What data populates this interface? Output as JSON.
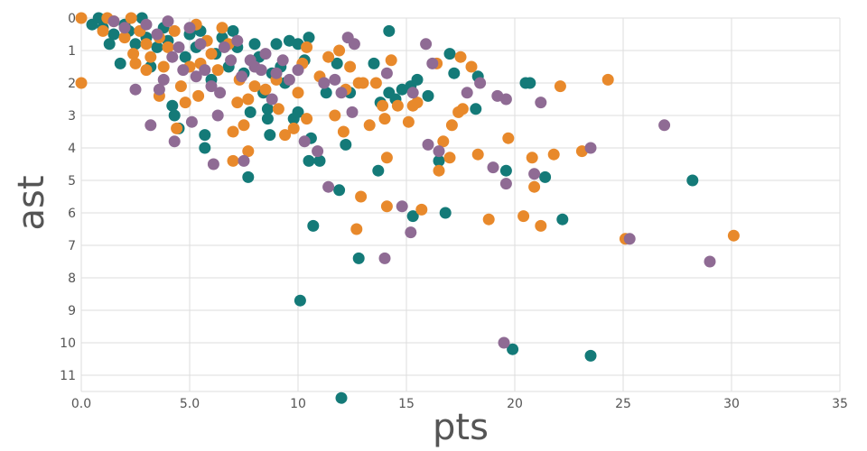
{
  "chart_data": {
    "type": "scatter",
    "title": "",
    "xlabel": "pts",
    "ylabel": "ast",
    "xlim": [
      0,
      35
    ],
    "ylim": [
      0,
      11.5
    ],
    "y_inverted": true,
    "grid": true,
    "legend": "none",
    "x_ticks": [
      "0.0",
      "5.0",
      "10",
      "15",
      "20",
      "25",
      "30",
      "35"
    ],
    "y_ticks": [
      "0",
      "1",
      "2",
      "3",
      "4",
      "5",
      "6",
      "7",
      "8",
      "9",
      "10",
      "11"
    ],
    "colors": {
      "teal": "#147a78",
      "orange": "#e8892b",
      "purple": "#8f6b94"
    },
    "series": [
      {
        "color": "#147a78",
        "points": [
          [
            0.5,
            0.2
          ],
          [
            0.8,
            0
          ],
          [
            1,
            0.3
          ],
          [
            1.3,
            0.8
          ],
          [
            1.5,
            0.5
          ],
          [
            1.8,
            1.4
          ],
          [
            2,
            0.2
          ],
          [
            2.2,
            0.4
          ],
          [
            2.5,
            0.8
          ],
          [
            2.8,
            0
          ],
          [
            3,
            0.6
          ],
          [
            3.2,
            1.5
          ],
          [
            3.5,
            0.9
          ],
          [
            3.8,
            0.3
          ],
          [
            4,
            0.7
          ],
          [
            4.2,
            2.7
          ],
          [
            4.3,
            3
          ],
          [
            4.5,
            3.4
          ],
          [
            4.8,
            1.2
          ],
          [
            5,
            0.5
          ],
          [
            5.3,
            0.9
          ],
          [
            5.5,
            0.4
          ],
          [
            5.7,
            3.6
          ],
          [
            5.7,
            4
          ],
          [
            6,
            1.9
          ],
          [
            6.2,
            1.1
          ],
          [
            6.5,
            0.6
          ],
          [
            6.8,
            1.5
          ],
          [
            7,
            0.4
          ],
          [
            7.2,
            0.9
          ],
          [
            7.5,
            1.7
          ],
          [
            7.7,
            4.9
          ],
          [
            7.8,
            2.9
          ],
          [
            8,
            0.8
          ],
          [
            8.2,
            1.2
          ],
          [
            8.4,
            2.3
          ],
          [
            8.6,
            2.8
          ],
          [
            8.6,
            3.1
          ],
          [
            8.7,
            3.6
          ],
          [
            8.8,
            1.7
          ],
          [
            9,
            0.8
          ],
          [
            9.2,
            1.5
          ],
          [
            9.4,
            2
          ],
          [
            9.6,
            0.7
          ],
          [
            9.8,
            3.1
          ],
          [
            10,
            0.8
          ],
          [
            10,
            2.9
          ],
          [
            10.1,
            8.7
          ],
          [
            10.3,
            1.3
          ],
          [
            10.5,
            0.6
          ],
          [
            10.5,
            4.4
          ],
          [
            10.6,
            3.7
          ],
          [
            10.7,
            6.4
          ],
          [
            11,
            4.4
          ],
          [
            11.3,
            2.3
          ],
          [
            11.8,
            1.4
          ],
          [
            11.9,
            5.3
          ],
          [
            12,
            11.7
          ],
          [
            12.2,
            3.9
          ],
          [
            12.4,
            2.3
          ],
          [
            12.8,
            7.4
          ],
          [
            13.5,
            1.4
          ],
          [
            13.7,
            4.7
          ],
          [
            13.8,
            2.6
          ],
          [
            14.2,
            0.4
          ],
          [
            14.2,
            2.3
          ],
          [
            14.5,
            2.5
          ],
          [
            14.8,
            2.2
          ],
          [
            15.2,
            2.1
          ],
          [
            15.3,
            6.1
          ],
          [
            15.5,
            1.9
          ],
          [
            16,
            2.4
          ],
          [
            16.5,
            4.4
          ],
          [
            16.8,
            6
          ],
          [
            17,
            1.1
          ],
          [
            17.2,
            1.7
          ],
          [
            18.2,
            2.8
          ],
          [
            18.3,
            1.8
          ],
          [
            19.6,
            4.7
          ],
          [
            19.9,
            10.2
          ],
          [
            20.5,
            2
          ],
          [
            20.7,
            2
          ],
          [
            21.4,
            4.9
          ],
          [
            22.2,
            6.2
          ],
          [
            23.5,
            10.4
          ],
          [
            28.2,
            5
          ]
        ]
      },
      {
        "color": "#e8892b",
        "points": [
          [
            0,
            0
          ],
          [
            0,
            2
          ],
          [
            1,
            0.4
          ],
          [
            1.2,
            0
          ],
          [
            1.5,
            0.1
          ],
          [
            2,
            0.6
          ],
          [
            2.3,
            0
          ],
          [
            2.4,
            1.1
          ],
          [
            2.5,
            1.4
          ],
          [
            2.7,
            0.4
          ],
          [
            3,
            0.8
          ],
          [
            3,
            1.6
          ],
          [
            3.2,
            1.2
          ],
          [
            3.6,
            0.6
          ],
          [
            3.6,
            2.4
          ],
          [
            3.8,
            1.5
          ],
          [
            4,
            0.9
          ],
          [
            4.3,
            0.4
          ],
          [
            4.4,
            3.4
          ],
          [
            4.6,
            2.1
          ],
          [
            4.8,
            2.6
          ],
          [
            5,
            1.5
          ],
          [
            5.3,
            0.2
          ],
          [
            5.4,
            2.4
          ],
          [
            5.5,
            1.4
          ],
          [
            5.8,
            0.7
          ],
          [
            6,
            1.1
          ],
          [
            6.3,
            1.6
          ],
          [
            6.5,
            0.3
          ],
          [
            6.8,
            0.8
          ],
          [
            7,
            3.5
          ],
          [
            7,
            4.4
          ],
          [
            7.2,
            2.6
          ],
          [
            7.3,
            1.9
          ],
          [
            7.5,
            3.3
          ],
          [
            7.7,
            2.5
          ],
          [
            7.7,
            4.1
          ],
          [
            8,
            2.1
          ],
          [
            8.5,
            2.2
          ],
          [
            9,
            1.9
          ],
          [
            9.1,
            2.8
          ],
          [
            9.4,
            3.6
          ],
          [
            9.8,
            3.4
          ],
          [
            10,
            2.3
          ],
          [
            10.2,
            1.4
          ],
          [
            10.4,
            0.9
          ],
          [
            10.4,
            3.1
          ],
          [
            11,
            1.8
          ],
          [
            11.4,
            1.2
          ],
          [
            11.7,
            3
          ],
          [
            11.9,
            1
          ],
          [
            12.1,
            3.5
          ],
          [
            12.4,
            1.5
          ],
          [
            12.8,
            2
          ],
          [
            12.9,
            5.5
          ],
          [
            13,
            2
          ],
          [
            13.3,
            3.3
          ],
          [
            13.6,
            2
          ],
          [
            13.9,
            2.7
          ],
          [
            14,
            3.1
          ],
          [
            14.1,
            4.3
          ],
          [
            14.1,
            5.8
          ],
          [
            14.3,
            1.3
          ],
          [
            14.6,
            2.7
          ],
          [
            15.1,
            3.2
          ],
          [
            15.3,
            2.7
          ],
          [
            15.5,
            2.6
          ],
          [
            15.7,
            5.9
          ],
          [
            16.4,
            1.4
          ],
          [
            16.5,
            4.7
          ],
          [
            16.7,
            3.8
          ],
          [
            17,
            4.3
          ],
          [
            17.1,
            3.3
          ],
          [
            17.4,
            2.9
          ],
          [
            17.6,
            2.8
          ],
          [
            17.5,
            1.2
          ],
          [
            18,
            1.5
          ],
          [
            18.3,
            4.2
          ],
          [
            18.8,
            6.2
          ],
          [
            19.7,
            3.7
          ],
          [
            20.4,
            6.1
          ],
          [
            20.8,
            4.3
          ],
          [
            20.9,
            5.2
          ],
          [
            21.2,
            6.4
          ],
          [
            21.8,
            4.2
          ],
          [
            22.1,
            2.1
          ],
          [
            23.1,
            4.1
          ],
          [
            24.3,
            1.9
          ],
          [
            25.1,
            6.8
          ],
          [
            30.1,
            6.7
          ],
          [
            12.2,
            2.2
          ],
          [
            12.7,
            6.5
          ]
        ]
      },
      {
        "color": "#8f6b94",
        "points": [
          [
            1.5,
            0.1
          ],
          [
            2,
            0.3
          ],
          [
            2.5,
            2.2
          ],
          [
            3,
            0.2
          ],
          [
            3.2,
            3.3
          ],
          [
            3.5,
            0.5
          ],
          [
            3.6,
            2.2
          ],
          [
            3.8,
            1.9
          ],
          [
            4,
            0.1
          ],
          [
            4.2,
            1.2
          ],
          [
            4.3,
            3.8
          ],
          [
            4.5,
            0.9
          ],
          [
            4.7,
            1.6
          ],
          [
            5,
            0.3
          ],
          [
            5.1,
            3.2
          ],
          [
            5.3,
            1.8
          ],
          [
            5.5,
            0.8
          ],
          [
            5.7,
            1.6
          ],
          [
            6,
            2.1
          ],
          [
            6.1,
            4.5
          ],
          [
            6.3,
            3
          ],
          [
            6.4,
            2.3
          ],
          [
            6.6,
            0.9
          ],
          [
            6.9,
            1.3
          ],
          [
            7.2,
            0.7
          ],
          [
            7.4,
            1.8
          ],
          [
            7.5,
            4.4
          ],
          [
            7.8,
            1.3
          ],
          [
            8,
            1.5
          ],
          [
            8.3,
            1.6
          ],
          [
            8.5,
            1.1
          ],
          [
            8.8,
            2.5
          ],
          [
            9,
            1.7
          ],
          [
            9.3,
            1.3
          ],
          [
            9.6,
            1.9
          ],
          [
            10,
            1.6
          ],
          [
            10.3,
            3.8
          ],
          [
            10.9,
            4.1
          ],
          [
            11.2,
            2
          ],
          [
            11.4,
            5.2
          ],
          [
            11.7,
            1.9
          ],
          [
            12,
            2.3
          ],
          [
            12.3,
            0.6
          ],
          [
            12.5,
            2.9
          ],
          [
            12.6,
            0.8
          ],
          [
            14,
            7.4
          ],
          [
            14.1,
            1.7
          ],
          [
            14.8,
            5.8
          ],
          [
            15.2,
            6.6
          ],
          [
            15.3,
            2.3
          ],
          [
            15.9,
            0.8
          ],
          [
            16,
            3.9
          ],
          [
            16.2,
            1.4
          ],
          [
            16.5,
            4.1
          ],
          [
            17.8,
            2.3
          ],
          [
            18.4,
            2
          ],
          [
            19,
            4.6
          ],
          [
            19.2,
            2.4
          ],
          [
            19.5,
            10
          ],
          [
            19.6,
            5.1
          ],
          [
            19.6,
            2.5
          ],
          [
            20.9,
            4.8
          ],
          [
            21.2,
            2.6
          ],
          [
            23.5,
            4
          ],
          [
            25.3,
            6.8
          ],
          [
            26.9,
            3.3
          ],
          [
            29,
            7.5
          ]
        ]
      }
    ]
  }
}
